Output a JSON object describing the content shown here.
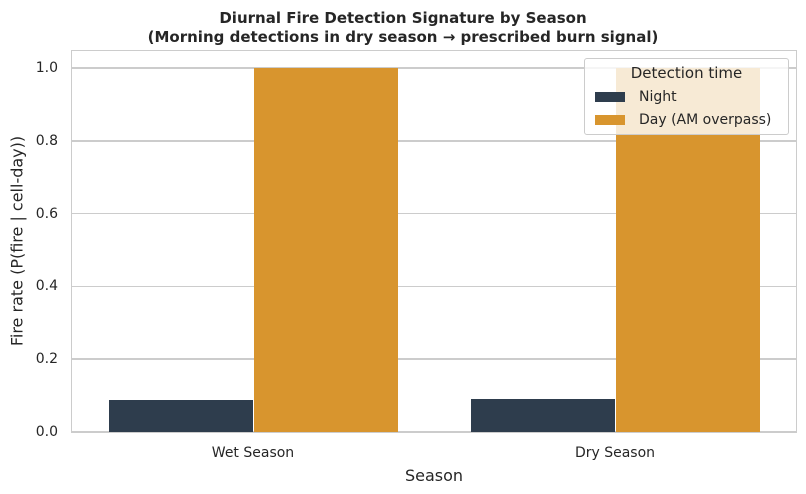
{
  "chart_data": {
    "type": "bar",
    "title": "Diurnal Fire Detection Signature by Season",
    "subtitle": "(Morning detections in dry season → prescribed burn signal)",
    "xlabel": "Season",
    "ylabel": "Fire rate (P(fire | cell-day))",
    "categories": [
      "Wet Season",
      "Dry Season"
    ],
    "series": [
      {
        "name": "Night",
        "color": "#2e3d4d",
        "values": [
          0.087,
          0.092
        ]
      },
      {
        "name": "Day (AM overpass)",
        "color": "#d8952e",
        "values": [
          1.0,
          1.0
        ]
      }
    ],
    "ylim": [
      0,
      1.05
    ],
    "yticks": [
      "0.0",
      "0.2",
      "0.4",
      "0.6",
      "0.8",
      "1.0"
    ],
    "grid": true,
    "legend": {
      "title": "Detection time",
      "position": "upper right"
    }
  }
}
